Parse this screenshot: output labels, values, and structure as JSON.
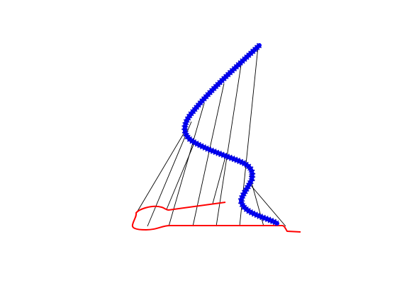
{
  "figure": {
    "background": "#ffffff",
    "blue_curve": {
      "color": "#0000ff",
      "style": "thick-marker-line"
    },
    "red_curve": {
      "color": "#ff0000",
      "style": "thin-line"
    },
    "connectors": {
      "color": "#000000",
      "count": 10
    }
  }
}
